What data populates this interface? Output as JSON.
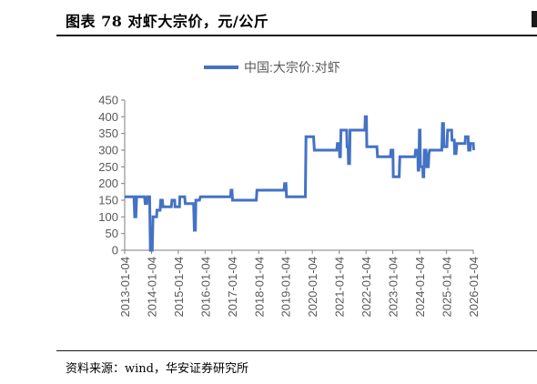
{
  "header": {
    "title": "图表 78 对虾大宗价，元/公斤"
  },
  "footer": {
    "source": "资料来源：wind，华安证券研究所"
  },
  "chart_data": {
    "type": "line",
    "title": "",
    "xlabel": "",
    "ylabel": "",
    "legend_position": "top-center",
    "grid": false,
    "x_is_date": true,
    "ylim": [
      0,
      450
    ],
    "yticks": [
      0,
      50,
      100,
      150,
      200,
      250,
      300,
      350,
      400,
      450
    ],
    "xticks": [
      "2013-01-04",
      "2014-01-04",
      "2015-01-04",
      "2016-01-04",
      "2017-01-04",
      "2018-01-04",
      "2019-01-04",
      "2020-01-04",
      "2021-01-04",
      "2022-01-04",
      "2023-01-04",
      "2024-01-04",
      "2025-01-04",
      "2026-01-04"
    ],
    "series": [
      {
        "name": "中国:大宗价:对虾",
        "color": "#4472C4",
        "points": [
          [
            "2013-01-04",
            160
          ],
          [
            "2013-05-10",
            160
          ],
          [
            "2013-05-20",
            100
          ],
          [
            "2013-06-05",
            100
          ],
          [
            "2013-06-15",
            160
          ],
          [
            "2013-10-01",
            160
          ],
          [
            "2013-10-10",
            140
          ],
          [
            "2013-11-01",
            140
          ],
          [
            "2013-11-10",
            160
          ],
          [
            "2013-12-10",
            160
          ],
          [
            "2013-12-20",
            0
          ],
          [
            "2014-01-15",
            0
          ],
          [
            "2014-01-25",
            100
          ],
          [
            "2014-03-15",
            100
          ],
          [
            "2014-03-20",
            120
          ],
          [
            "2014-05-01",
            120
          ],
          [
            "2014-05-10",
            150
          ],
          [
            "2014-06-01",
            150
          ],
          [
            "2014-06-10",
            130
          ],
          [
            "2014-10-01",
            130
          ],
          [
            "2014-10-10",
            150
          ],
          [
            "2014-11-15",
            150
          ],
          [
            "2014-11-20",
            130
          ],
          [
            "2015-01-20",
            130
          ],
          [
            "2015-01-25",
            160
          ],
          [
            "2015-04-01",
            160
          ],
          [
            "2015-04-10",
            140
          ],
          [
            "2015-08-01",
            140
          ],
          [
            "2015-08-10",
            60
          ],
          [
            "2015-08-25",
            60
          ],
          [
            "2015-09-01",
            150
          ],
          [
            "2015-10-20",
            150
          ],
          [
            "2015-11-01",
            160
          ],
          [
            "2016-10-01",
            160
          ],
          [
            "2016-12-15",
            160
          ],
          [
            "2016-12-22",
            180
          ],
          [
            "2017-01-05",
            180
          ],
          [
            "2017-01-12",
            150
          ],
          [
            "2017-12-01",
            150
          ],
          [
            "2017-12-10",
            180
          ],
          [
            "2018-12-15",
            180
          ],
          [
            "2018-12-22",
            200
          ],
          [
            "2019-01-10",
            200
          ],
          [
            "2019-01-17",
            160
          ],
          [
            "2019-10-01",
            160
          ],
          [
            "2019-10-10",
            340
          ],
          [
            "2020-01-20",
            340
          ],
          [
            "2020-02-01",
            300
          ],
          [
            "2020-12-01",
            300
          ],
          [
            "2020-12-10",
            320
          ],
          [
            "2021-01-05",
            320
          ],
          [
            "2021-01-10",
            280
          ],
          [
            "2021-01-20",
            280
          ],
          [
            "2021-01-28",
            360
          ],
          [
            "2021-04-15",
            360
          ],
          [
            "2021-04-20",
            310
          ],
          [
            "2021-05-05",
            310
          ],
          [
            "2021-05-10",
            260
          ],
          [
            "2021-05-25",
            260
          ],
          [
            "2021-06-01",
            360
          ],
          [
            "2021-12-20",
            360
          ],
          [
            "2021-12-25",
            400
          ],
          [
            "2022-01-10",
            400
          ],
          [
            "2022-01-15",
            310
          ],
          [
            "2022-06-01",
            310
          ],
          [
            "2022-06-10",
            280
          ],
          [
            "2022-12-01",
            280
          ],
          [
            "2022-12-10",
            300
          ],
          [
            "2023-01-05",
            300
          ],
          [
            "2023-01-10",
            220
          ],
          [
            "2023-04-01",
            220
          ],
          [
            "2023-04-10",
            280
          ],
          [
            "2023-11-01",
            280
          ],
          [
            "2023-11-10",
            300
          ],
          [
            "2023-12-10",
            300
          ],
          [
            "2023-12-15",
            240
          ],
          [
            "2023-12-25",
            240
          ],
          [
            "2024-01-01",
            360
          ],
          [
            "2024-01-10",
            360
          ],
          [
            "2024-01-15",
            250
          ],
          [
            "2024-02-15",
            250
          ],
          [
            "2024-02-20",
            220
          ],
          [
            "2024-03-01",
            220
          ],
          [
            "2024-03-08",
            300
          ],
          [
            "2024-04-01",
            300
          ],
          [
            "2024-04-10",
            250
          ],
          [
            "2024-05-01",
            250
          ],
          [
            "2024-05-10",
            290
          ],
          [
            "2024-05-20",
            300
          ],
          [
            "2024-11-01",
            300
          ],
          [
            "2024-11-10",
            380
          ],
          [
            "2024-11-25",
            380
          ],
          [
            "2024-12-01",
            310
          ],
          [
            "2025-01-10",
            310
          ],
          [
            "2025-01-20",
            360
          ],
          [
            "2025-03-15",
            360
          ],
          [
            "2025-03-20",
            330
          ],
          [
            "2025-04-20",
            330
          ],
          [
            "2025-04-25",
            290
          ],
          [
            "2025-05-15",
            290
          ],
          [
            "2025-05-25",
            320
          ],
          [
            "2025-09-15",
            320
          ],
          [
            "2025-09-20",
            340
          ],
          [
            "2025-10-25",
            340
          ],
          [
            "2025-11-01",
            300
          ],
          [
            "2025-11-20",
            300
          ],
          [
            "2025-11-25",
            320
          ],
          [
            "2026-01-04",
            320
          ],
          [
            "2026-01-10",
            300
          ]
        ]
      }
    ]
  }
}
